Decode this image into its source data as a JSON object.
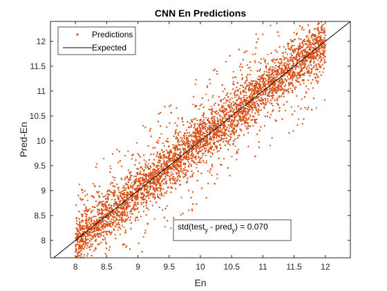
{
  "chart_data": {
    "type": "scatter",
    "title": "CNN En Predictions",
    "xlabel": "En",
    "ylabel": "Pred-En",
    "xlim": [
      7.6,
      12.4
    ],
    "ylim": [
      7.65,
      12.4
    ],
    "x_ticks": [
      8,
      8.5,
      9,
      9.5,
      10,
      10.5,
      11,
      11.5,
      12
    ],
    "y_ticks": [
      8,
      8.5,
      9,
      9.5,
      10,
      10.5,
      11,
      11.5,
      12
    ],
    "x_tick_labels": [
      "8",
      "8.5",
      "9",
      "9.5",
      "10",
      "10.5",
      "11",
      "11.5",
      "12"
    ],
    "y_tick_labels": [
      "8",
      "8.5",
      "9",
      "9.5",
      "10",
      "10.5",
      "11",
      "11.5",
      "12"
    ],
    "grid": false,
    "legend_position": "top-left",
    "series": [
      {
        "name": "Predictions",
        "kind": "scatter",
        "color": "#D95319",
        "x_range": [
          8,
          12
        ],
        "typical_spread": 0.25,
        "max_spread": 1.3
      },
      {
        "name": "Expected",
        "kind": "line",
        "color": "#000000",
        "x": [
          7.6,
          12.4
        ],
        "y": [
          7.6,
          12.4
        ]
      }
    ],
    "annotation": {
      "prefix": "std(test",
      "sub1": "y",
      "middle": " - pred",
      "sub2": "y",
      "suffix": ") = 0.070"
    }
  }
}
